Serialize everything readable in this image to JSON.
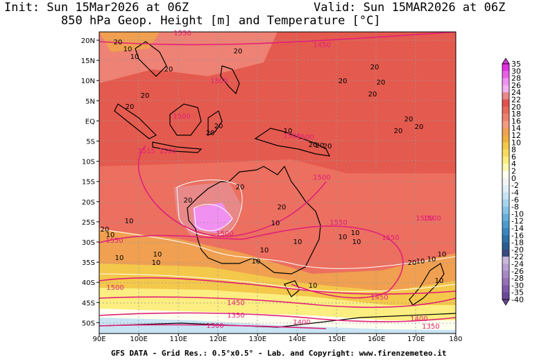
{
  "header": {
    "init": "Init: Sun 15Mar2026 at 06Z",
    "valid": "Valid: Sun 15MAR2026 at 06Z",
    "subtitle": "850 hPa Geop. Height [m] and Temperature [°C]"
  },
  "footer": "GFS DATA - Grid Res.: 0.5°x0.5° - Lab. and Copyright: www.firenzemeteo.it",
  "axes": {
    "lat_labels": [
      "20N",
      "15N",
      "10N",
      "5N",
      "EQ",
      "5S",
      "10S",
      "15S",
      "20S",
      "25S",
      "30S",
      "35S",
      "40S",
      "45S",
      "50S"
    ],
    "lon_labels": [
      "90E",
      "100E",
      "110E",
      "120E",
      "130E",
      "140E",
      "150E",
      "160E",
      "170E",
      "180"
    ]
  },
  "colorbar": {
    "labels": [
      "35",
      "30",
      "28",
      "26",
      "24",
      "22",
      "20",
      "18",
      "16",
      "14",
      "12",
      "10",
      "8",
      "6",
      "4",
      "2",
      "0",
      "-2",
      "-4",
      "-6",
      "-8",
      "-10",
      "-12",
      "-14",
      "-16",
      "-18",
      "-20",
      "-22",
      "-24",
      "-26",
      "-28",
      "-30",
      "-35",
      "-40"
    ],
    "colors": [
      "#e030e0",
      "#e860e8",
      "#f090f0",
      "#f4b0f0",
      "#e88888",
      "#e35050",
      "#e86a5c",
      "#ee8070",
      "#f49a80",
      "#f0a050",
      "#f0b040",
      "#f4c84a",
      "#f8dc60",
      "#fcee80",
      "#fff8b0",
      "#fffff0",
      "#f4f4f4",
      "#e0eef8",
      "#c8e4f4",
      "#a8d4ee",
      "#88c4e6",
      "#68b0dc",
      "#4c9cd0",
      "#3a86c0",
      "#2e70a8",
      "#2a5c90",
      "#3a4a80",
      "#c8b8dc",
      "#b8a0d0",
      "#a888c4",
      "#9870b8",
      "#8058a8",
      "#6a4898"
    ]
  },
  "temperature_labels": [
    "20",
    "10",
    "10",
    "20",
    "20",
    "20",
    "20",
    "20",
    "20",
    "20",
    "20",
    "20",
    "20",
    "20",
    "20",
    "20",
    "20",
    "20",
    "20",
    "10",
    "20",
    "20",
    "20",
    "10",
    "10",
    "10",
    "10",
    "10",
    "10",
    "20",
    "10",
    "10",
    "10",
    "10",
    "10",
    "10",
    "10",
    "20",
    "10",
    "10",
    "10",
    "10"
  ],
  "height_labels": [
    "1550",
    "1450",
    "1500",
    "1500",
    "1515",
    "1500",
    "1500",
    "1500",
    "1500",
    "1500",
    "1550",
    "1550",
    "1500",
    "1550",
    "1500",
    "1500",
    "1450",
    "1450",
    "1400",
    "1350",
    "1300",
    "1400",
    "1350"
  ],
  "colors": {
    "height_contour": "#e0207a",
    "temp_contour": "#ffffff",
    "coast": "#000000"
  }
}
